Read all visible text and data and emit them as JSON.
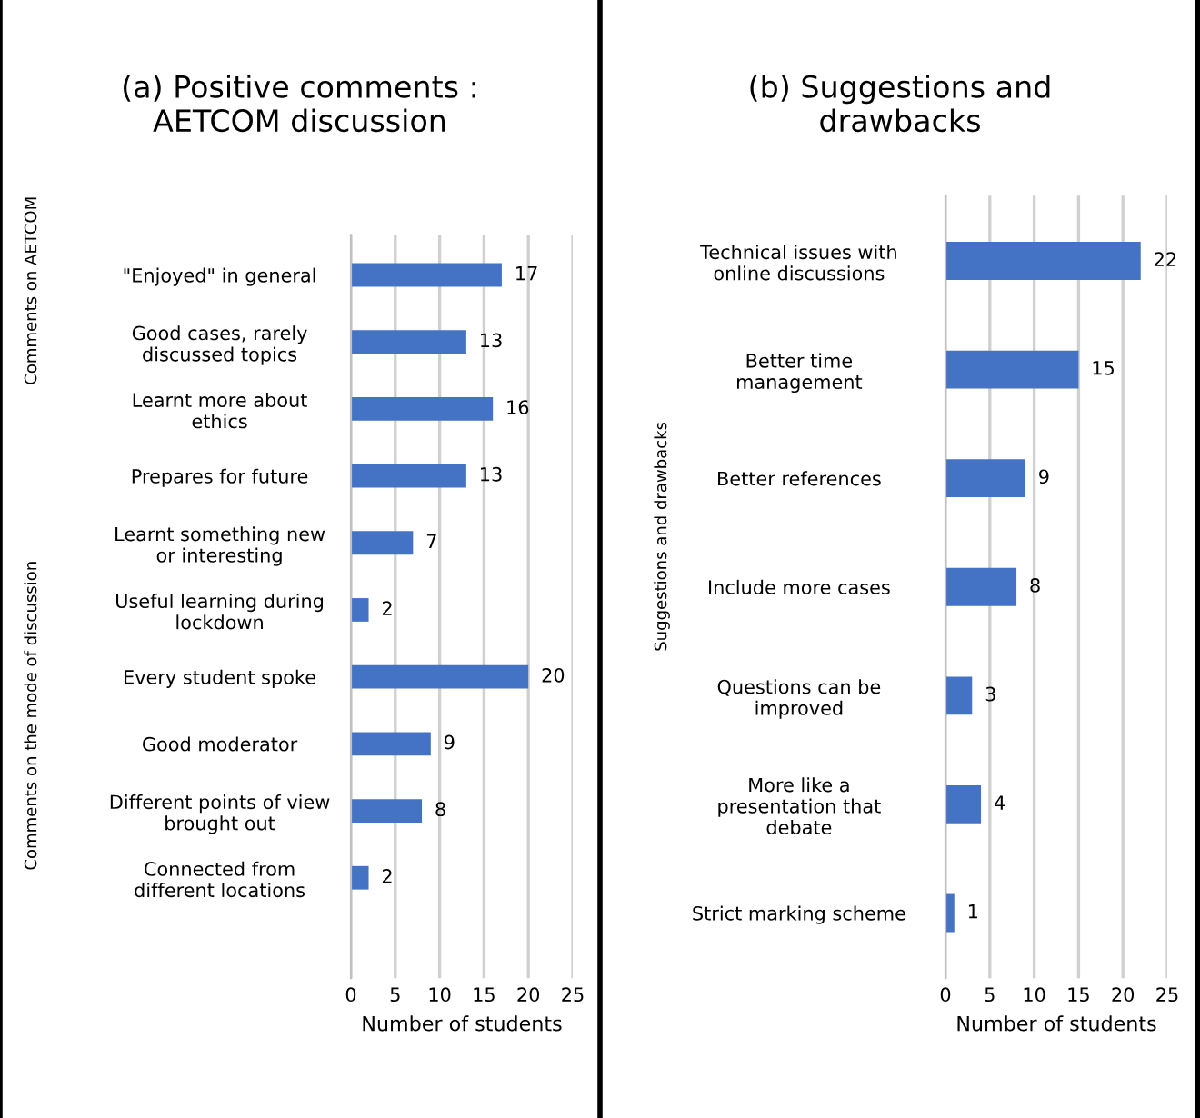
{
  "chart_data": [
    {
      "type": "bar",
      "orientation": "horizontal",
      "title": "(a) Positive comments :\nAETCOM discussion",
      "xlabel": "Number of students",
      "categories": [
        "\"Enjoyed\" in general",
        "Good cases, rarely\ndiscussed topics",
        "Learnt more about\nethics",
        "Prepares for future",
        "Learnt something new\nor interesting",
        "Useful learning during\nlockdown",
        "Every student spoke",
        "Good moderator",
        "Different points of view\nbrought out",
        "Connected from\ndifferent locations"
      ],
      "values": [
        17,
        13,
        16,
        13,
        7,
        2,
        20,
        9,
        8,
        2
      ],
      "color": "#4472c4",
      "data_labels": true,
      "xlim": [
        0,
        25
      ],
      "xticks": [
        0,
        5,
        10,
        15,
        20,
        25
      ],
      "grid": "x",
      "annotations": [
        "Comments on AETCOM",
        "Comments on the mode of discussion"
      ]
    },
    {
      "type": "bar",
      "orientation": "horizontal",
      "title": "(b) Suggestions and\ndrawbacks",
      "xlabel": "Number of students",
      "categories": [
        "Technical issues with\nonline discussions",
        "Better time\nmanagement",
        "Better references",
        "Include more cases",
        "Questions can be\nimproved",
        "More like a\npresentation that\ndebate",
        "Strict marking scheme"
      ],
      "values": [
        22,
        15,
        9,
        8,
        3,
        4,
        1
      ],
      "color": "#4472c4",
      "data_labels": true,
      "xlim": [
        0,
        25
      ],
      "xticks": [
        0,
        5,
        10,
        15,
        20,
        25
      ],
      "grid": "x",
      "annotations": [
        "Suggestions and drawbacks"
      ]
    }
  ]
}
